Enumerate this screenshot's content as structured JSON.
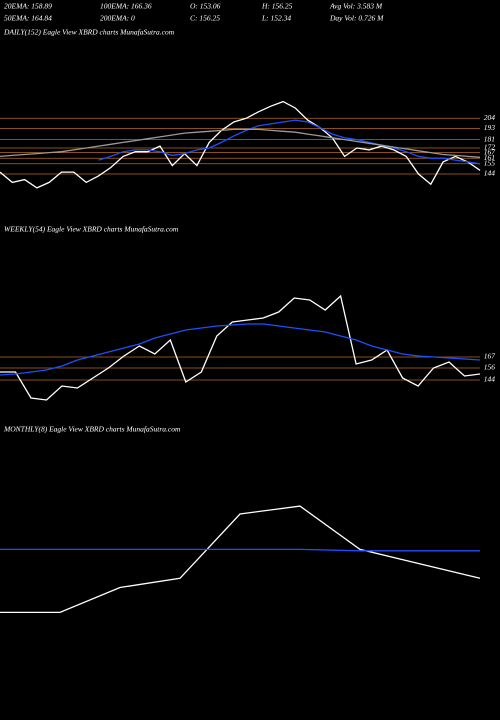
{
  "header": {
    "row1": [
      "20EMA: 158.89",
      "100EMA: 166.36",
      "O: 153.06",
      "H: 156.25",
      "Avg Vol: 3.583 M"
    ],
    "row2": [
      "50EMA: 164.84",
      "200EMA: 0",
      "C: 156.25",
      "L: 152.34",
      "Day Vol: 0.726 M"
    ]
  },
  "chart_data": [
    {
      "type": "line",
      "title": "DAILY(152) Eagle  View  XBRD charts MunafaSutra.com",
      "ylim": [
        116,
        228
      ],
      "yticks": [
        204,
        193,
        181,
        172,
        167,
        161,
        155,
        144
      ],
      "grid": true,
      "grid_color": "#b86a1e",
      "series": [
        {
          "name": "Price",
          "color": "#ffffff",
          "values": [
            146,
            135,
            138,
            129,
            135,
            146,
            146,
            135,
            142,
            151,
            163,
            168,
            168,
            174,
            153,
            166,
            153,
            178,
            191,
            200,
            204,
            211,
            217,
            222,
            215,
            202,
            194,
            183,
            163,
            172,
            170,
            174,
            170,
            163,
            144,
            133,
            157,
            163,
            157,
            148
          ]
        },
        {
          "name": "EMA",
          "color": "#1e4fff",
          "values": [
            null,
            null,
            null,
            null,
            null,
            null,
            null,
            null,
            159,
            163,
            168,
            170,
            170,
            168,
            164,
            166,
            170,
            172,
            178,
            185,
            191,
            196,
            198,
            200,
            202,
            200,
            194,
            187,
            183,
            181,
            178,
            175,
            172,
            168,
            163,
            161,
            161,
            159,
            157,
            155
          ]
        },
        {
          "name": "EMA2",
          "color": "#9a9a9a",
          "values": [
            163,
            164,
            165,
            166,
            167,
            168,
            170,
            172,
            174,
            176,
            178,
            180,
            182,
            184,
            186,
            188,
            189,
            190,
            191,
            192,
            192,
            192,
            191,
            190,
            189,
            187,
            185,
            183,
            181,
            179,
            177,
            175,
            173,
            171,
            169,
            167,
            165,
            164,
            163,
            162
          ]
        }
      ]
    },
    {
      "type": "line",
      "title": "WEEKLY(54) Eagle  View  XBRD charts MunafaSutra.com",
      "ylim": [
        119,
        244
      ],
      "yticks": [
        167,
        156,
        144
      ],
      "grid": true,
      "grid_color": "#b86a1e",
      "series": [
        {
          "name": "Price",
          "color": "#ffffff",
          "values": [
            152,
            152,
            126,
            124,
            138,
            136,
            146,
            156,
            168,
            178,
            170,
            184,
            142,
            152,
            188,
            202,
            204,
            206,
            212,
            226,
            224,
            214,
            228,
            160,
            164,
            174,
            146,
            138,
            156,
            162,
            148,
            150
          ]
        },
        {
          "name": "EMA",
          "color": "#1e4fff",
          "values": [
            149,
            150,
            152,
            154,
            158,
            164,
            168,
            172,
            176,
            180,
            186,
            190,
            194,
            196,
            198,
            199,
            200,
            200,
            198,
            196,
            194,
            192,
            188,
            184,
            178,
            174,
            170,
            168,
            167,
            166,
            165,
            164
          ]
        }
      ]
    },
    {
      "type": "line",
      "title": "MONTHLY(8) Eagle  View  XBRD charts MunafaSutra.com",
      "ylim": [
        100,
        260
      ],
      "yticks": [],
      "grid": false,
      "grid_color": "#b86a1e",
      "series": [
        {
          "name": "Price",
          "color": "#ffffff",
          "values": [
            121,
            121,
            140,
            147,
            196,
            202,
            169,
            158,
            147
          ]
        },
        {
          "name": "EMA",
          "color": "#1e4fff",
          "values": [
            169,
            169,
            169,
            169,
            169,
            169,
            168,
            168,
            168
          ]
        }
      ]
    }
  ]
}
